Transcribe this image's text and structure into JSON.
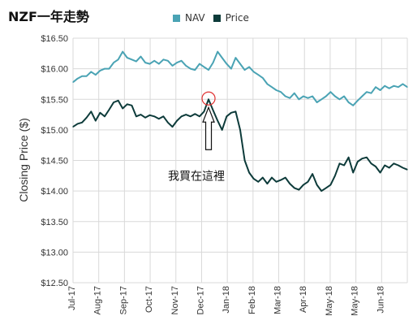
{
  "title": "NZF一年走勢",
  "legend": [
    {
      "name": "NAV",
      "color": "#4aa3b4"
    },
    {
      "name": "Price",
      "color": "#0d3b3a"
    }
  ],
  "chart_data": {
    "type": "line",
    "ylabel": "Closing Price ($)",
    "ylim": [
      12.5,
      16.5
    ],
    "yticks": [
      "$16.50",
      "$16.00",
      "$15.50",
      "$15.00",
      "$14.50",
      "$14.00",
      "$13.50",
      "$13.00",
      "$12.50"
    ],
    "xticks": [
      "Jul-17",
      "Aug-17",
      "Sep-17",
      "Oct-17",
      "Nov-17",
      "Dec-17",
      "Jan-18",
      "Feb-18",
      "Mar-18",
      "Apr-18",
      "May-18",
      "May-18",
      "Jun-18"
    ],
    "grid": true,
    "series": [
      {
        "name": "NAV",
        "color": "#4aa3b4",
        "values": [
          15.78,
          15.84,
          15.88,
          15.88,
          15.95,
          15.9,
          15.97,
          16.0,
          16.0,
          16.1,
          16.15,
          16.28,
          16.18,
          16.15,
          16.12,
          16.2,
          16.1,
          16.08,
          16.13,
          16.08,
          16.15,
          16.13,
          16.05,
          16.1,
          16.13,
          16.05,
          16.0,
          15.98,
          16.08,
          16.03,
          15.98,
          16.1,
          16.28,
          16.18,
          16.08,
          16.0,
          16.18,
          16.08,
          15.98,
          16.03,
          15.95,
          15.9,
          15.85,
          15.75,
          15.7,
          15.65,
          15.62,
          15.55,
          15.52,
          15.6,
          15.5,
          15.55,
          15.52,
          15.55,
          15.45,
          15.5,
          15.55,
          15.62,
          15.55,
          15.5,
          15.55,
          15.45,
          15.4,
          15.48,
          15.55,
          15.62,
          15.6,
          15.7,
          15.65,
          15.72,
          15.68,
          15.72,
          15.7,
          15.75,
          15.7
        ]
      },
      {
        "name": "Price",
        "color": "#0d3b3a",
        "values": [
          15.05,
          15.1,
          15.12,
          15.2,
          15.3,
          15.15,
          15.28,
          15.22,
          15.33,
          15.45,
          15.48,
          15.35,
          15.42,
          15.4,
          15.22,
          15.25,
          15.2,
          15.24,
          15.22,
          15.18,
          15.22,
          15.12,
          15.05,
          15.15,
          15.22,
          15.25,
          15.22,
          15.26,
          15.22,
          15.3,
          15.5,
          15.32,
          15.15,
          15.0,
          15.22,
          15.28,
          15.3,
          15.0,
          14.5,
          14.3,
          14.2,
          14.15,
          14.22,
          14.12,
          14.22,
          14.15,
          14.18,
          14.22,
          14.12,
          14.05,
          14.02,
          14.1,
          14.15,
          14.28,
          14.1,
          14.0,
          14.05,
          14.1,
          14.25,
          14.45,
          14.42,
          14.55,
          14.3,
          14.48,
          14.53,
          14.55,
          14.45,
          14.4,
          14.3,
          14.42,
          14.38,
          14.45,
          14.42,
          14.38,
          14.35
        ]
      }
    ],
    "annotation": {
      "text": "我買在這裡",
      "x_index": 30
    }
  }
}
